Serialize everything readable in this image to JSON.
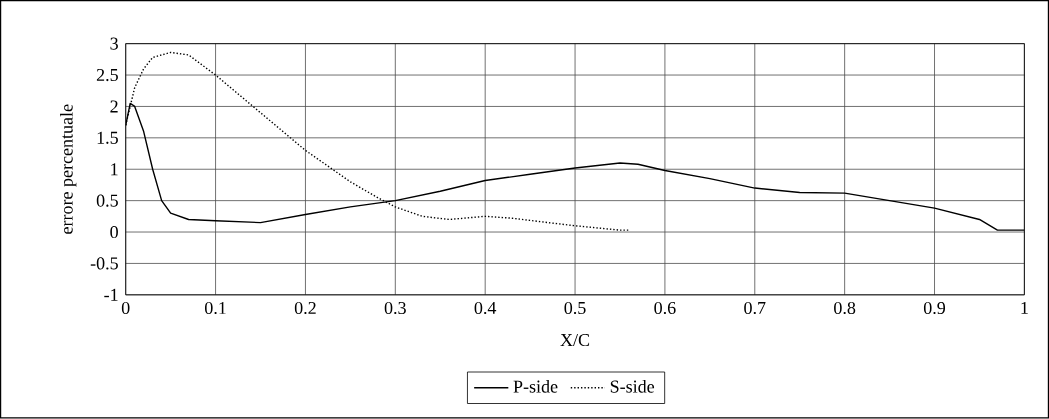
{
  "chart_data": {
    "type": "line",
    "xlabel": "X/C",
    "ylabel": "errore percentuale",
    "xlim": [
      0,
      1
    ],
    "ylim": [
      -1,
      3
    ],
    "xticks": [
      0,
      0.1,
      0.2,
      0.3,
      0.4,
      0.5,
      0.6,
      0.7,
      0.8,
      0.9,
      1
    ],
    "yticks": [
      -1,
      -0.5,
      0,
      0.5,
      1,
      1.5,
      2,
      2.5,
      3
    ],
    "grid": true,
    "legend": "bottom",
    "marker": "none",
    "series": [
      {
        "name": "P-side",
        "color": "#000000",
        "line_style": "solid",
        "x": [
          0,
          0.005,
          0.01,
          0.02,
          0.03,
          0.04,
          0.05,
          0.07,
          0.1,
          0.15,
          0.2,
          0.25,
          0.3,
          0.35,
          0.4,
          0.45,
          0.5,
          0.55,
          0.57,
          0.6,
          0.65,
          0.7,
          0.75,
          0.8,
          0.85,
          0.9,
          0.95,
          0.97,
          1
        ],
        "values": [
          1.7,
          2.05,
          2.0,
          1.6,
          1.0,
          0.5,
          0.3,
          0.2,
          0.18,
          0.15,
          0.28,
          0.4,
          0.5,
          0.65,
          0.82,
          0.92,
          1.02,
          1.1,
          1.08,
          0.98,
          0.85,
          0.7,
          0.63,
          0.62,
          0.5,
          0.38,
          0.2,
          0.03,
          0.03
        ]
      },
      {
        "name": "S-side",
        "color": "#000000",
        "line_style": "dotted",
        "x": [
          0,
          0.005,
          0.01,
          0.02,
          0.03,
          0.05,
          0.07,
          0.1,
          0.15,
          0.2,
          0.25,
          0.28,
          0.3,
          0.33,
          0.36,
          0.4,
          0.43,
          0.47,
          0.5,
          0.55,
          0.56
        ],
        "values": [
          1.7,
          2.0,
          2.3,
          2.6,
          2.78,
          2.86,
          2.82,
          2.5,
          1.9,
          1.3,
          0.8,
          0.55,
          0.4,
          0.25,
          0.2,
          0.25,
          0.22,
          0.15,
          0.1,
          0.03,
          0.03
        ]
      }
    ]
  }
}
